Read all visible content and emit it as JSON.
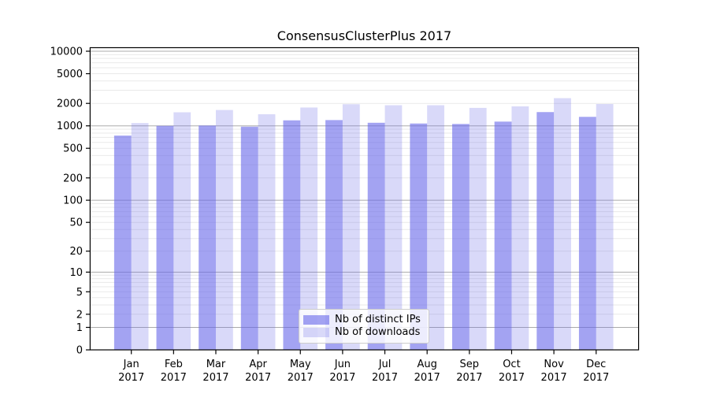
{
  "title": "ConsensusClusterPlus 2017",
  "chart_data": {
    "type": "bar",
    "title": "ConsensusClusterPlus 2017",
    "categories": [
      "Jan",
      "Feb",
      "Mar",
      "Apr",
      "May",
      "Jun",
      "Jul",
      "Aug",
      "Sep",
      "Oct",
      "Nov",
      "Dec"
    ],
    "x_year_label": "2017",
    "series": [
      {
        "name": "Nb of distinct IPs",
        "color": "rgba(102,102,233,0.6)",
        "values": [
          740,
          1000,
          1010,
          975,
          1185,
          1195,
          1100,
          1075,
          1060,
          1140,
          1530,
          1320
        ]
      },
      {
        "name": "Nb of downloads",
        "color": "rgba(102,102,233,0.25)",
        "values": [
          1090,
          1520,
          1630,
          1430,
          1760,
          1950,
          1890,
          1890,
          1740,
          1825,
          2350,
          1960
        ]
      }
    ],
    "y_axis": {
      "scale": "log1p",
      "ticks": [
        0,
        1,
        2,
        5,
        10,
        20,
        50,
        100,
        200,
        500,
        1000,
        2000,
        5000,
        10000
      ],
      "range": [
        0,
        10000
      ],
      "major_gridlines": [
        1,
        10,
        100,
        1000,
        10000
      ]
    },
    "grid": true,
    "legend": {
      "position": "bottom-center",
      "labels": [
        "Nb of distinct IPs",
        "Nb of downloads"
      ]
    },
    "colors": {
      "bar_base": "#6666e9",
      "major_grid": "#ababab",
      "minor_grid": "#e9e9e9",
      "axis": "#000000"
    }
  }
}
